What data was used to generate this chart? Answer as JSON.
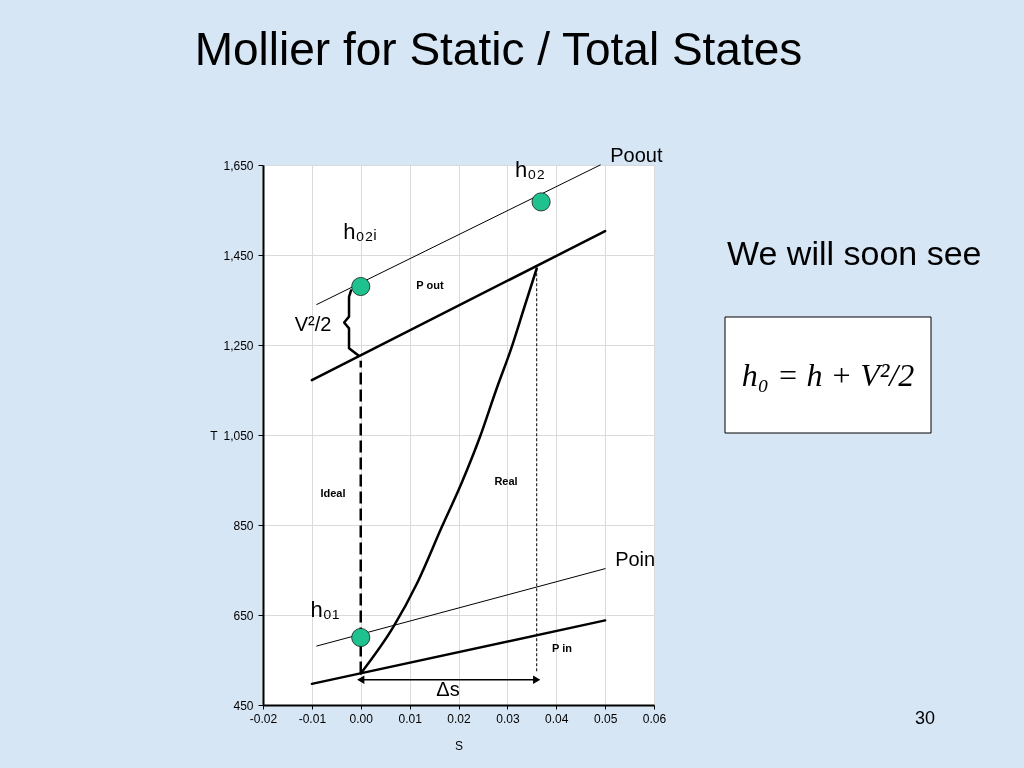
{
  "chart_data": {
    "type": "line",
    "title": "Mollier for Static / Total States",
    "xlabel": "S",
    "ylabel": "T",
    "xlim": [
      -0.02,
      0.06
    ],
    "ylim": [
      450,
      1650
    ],
    "xticks": [
      -0.02,
      -0.01,
      {
        "value": 0,
        "label": "0.00"
      },
      0.01,
      0.02,
      0.03,
      0.04,
      0.05,
      0.06
    ],
    "yticks": [
      450,
      650,
      850,
      {
        "value": 1050,
        "label": "1,050"
      },
      {
        "value": 1250,
        "label": "1,250"
      },
      {
        "value": 1450,
        "label": "1,450"
      },
      {
        "value": 1650,
        "label": "1,650"
      }
    ],
    "grid": true,
    "series": [
      {
        "color": "#000000",
        "x": [
          -0.01,
          0.05
        ],
        "values": [
          1172,
          1503
        ]
      },
      {
        "name": "Poout",
        "color": "#000000",
        "x": [
          -0.009,
          0.049
        ],
        "values": [
          1340,
          1650
        ]
      },
      {
        "name": "Poin",
        "color": "#000000",
        "x": [
          -0.009,
          0.05
        ],
        "values": [
          581,
          753
        ]
      },
      {
        "color": "#000000",
        "x": [
          -0.01,
          0.05
        ],
        "values": [
          497,
          638
        ]
      },
      {
        "color": "#000000",
        "line_style": "dashed",
        "x": [
          0,
          0
        ],
        "values": [
          520,
          1215
        ]
      },
      {
        "color": "#000000",
        "line_style": "dotted",
        "x": [
          0.036,
          0.036
        ],
        "values": [
          525,
          1420
        ]
      },
      {
        "color": "#000000",
        "x": [
          0,
          0.0067,
          0.0115,
          0.0166,
          0.0207,
          0.0244,
          0.0277,
          0.0309,
          0.0335,
          0.036
        ],
        "values": [
          520,
          624,
          720,
          846,
          945,
          1046,
          1150,
          1246,
          1335,
          1420
        ]
      },
      {
        "color": "#000000",
        "x": [
          -0.002,
          -0.0024,
          -0.0024,
          -0.0034,
          -0.0024,
          -0.0024,
          -0.0004
        ],
        "values": [
          1371,
          1357,
          1313,
          1300,
          1287,
          1243,
          1226
        ]
      },
      {
        "color": "#000000",
        "marker": "triangle",
        "x": [
          0,
          0.036
        ],
        "values": [
          506,
          506
        ]
      },
      {
        "type": "scatter",
        "color": "#1fc28f",
        "marker": "circle",
        "x": [
          0,
          0.0369,
          0
        ],
        "values": [
          1380,
          1568,
          600
        ]
      }
    ],
    "annotations": [
      "h₀₂",
      "h₀₂ᵢ",
      "h₀₁",
      "V²/2",
      "P out",
      "Ideal",
      "Real",
      "P in",
      "Δs",
      "We will soon see",
      "h₀ = h + V²/2",
      "30"
    ]
  }
}
